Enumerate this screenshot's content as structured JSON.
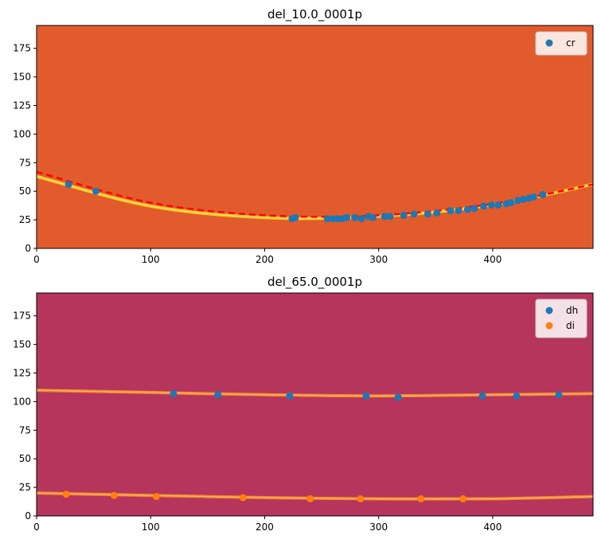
{
  "chart_data": [
    {
      "type": "scatter",
      "title": "del_10.0_0001p",
      "background_color": "#e25b2c",
      "xlim": [
        0,
        488
      ],
      "ylim": [
        0,
        195
      ],
      "x_ticks": [
        0,
        100,
        200,
        300,
        400
      ],
      "y_ticks": [
        0,
        25,
        50,
        75,
        100,
        125,
        150,
        175
      ],
      "legend_position": "top-right",
      "ring": {
        "color": "#ffd21f",
        "x": [
          0,
          100,
          200,
          300,
          400,
          488
        ],
        "y": [
          63,
          37,
          27,
          28,
          38,
          56
        ]
      },
      "fit": {
        "color": "#ff0000",
        "style": "dashed",
        "x": [
          0,
          100,
          200,
          300,
          400,
          488
        ],
        "y": [
          67,
          40,
          29,
          29,
          39,
          56
        ]
      },
      "series": [
        {
          "name": "cr",
          "color": "#1f77b4",
          "x": [
            28,
            52,
            224,
            227,
            255,
            260,
            264,
            268,
            272,
            279,
            285,
            291,
            295,
            305,
            310,
            322,
            331,
            343,
            351,
            363,
            370,
            378,
            384,
            392,
            399,
            405,
            412,
            416,
            422,
            427,
            432,
            436,
            444
          ],
          "y": [
            56,
            50,
            26,
            27,
            26,
            26,
            26,
            26,
            27,
            27,
            26,
            28,
            27,
            28,
            28,
            29,
            30,
            30,
            31,
            33,
            33,
            34,
            35,
            37,
            38,
            38,
            39,
            40,
            42,
            43,
            44,
            45,
            47
          ]
        }
      ]
    },
    {
      "type": "scatter",
      "title": "del_65.0_0001p",
      "background_color": "#b5355c",
      "xlim": [
        0,
        488
      ],
      "ylim": [
        0,
        195
      ],
      "x_ticks": [
        0,
        100,
        200,
        300,
        400
      ],
      "y_ticks": [
        0,
        25,
        50,
        75,
        100,
        125,
        150,
        175
      ],
      "legend_position": "top-right",
      "rings": [
        {
          "color": "#ff8c2a",
          "x": [
            0,
            100,
            200,
            300,
            400,
            488
          ],
          "y": [
            110,
            108,
            106,
            105,
            106,
            107
          ]
        },
        {
          "color": "#ff8c2a",
          "x": [
            0,
            100,
            200,
            300,
            400,
            488
          ],
          "y": [
            20,
            18,
            16,
            15,
            15,
            17
          ]
        }
      ],
      "series": [
        {
          "name": "dh",
          "color": "#1f77b4",
          "x": [
            120,
            159,
            222,
            289,
            317,
            391,
            421,
            458
          ],
          "y": [
            107,
            106,
            105,
            105,
            104,
            105,
            105,
            106
          ]
        },
        {
          "name": "di",
          "color": "#ff7f0e",
          "x": [
            26,
            68,
            105,
            181,
            240,
            284,
            337,
            374
          ],
          "y": [
            19,
            18,
            17,
            16,
            15,
            15,
            15,
            15
          ]
        }
      ]
    }
  ]
}
